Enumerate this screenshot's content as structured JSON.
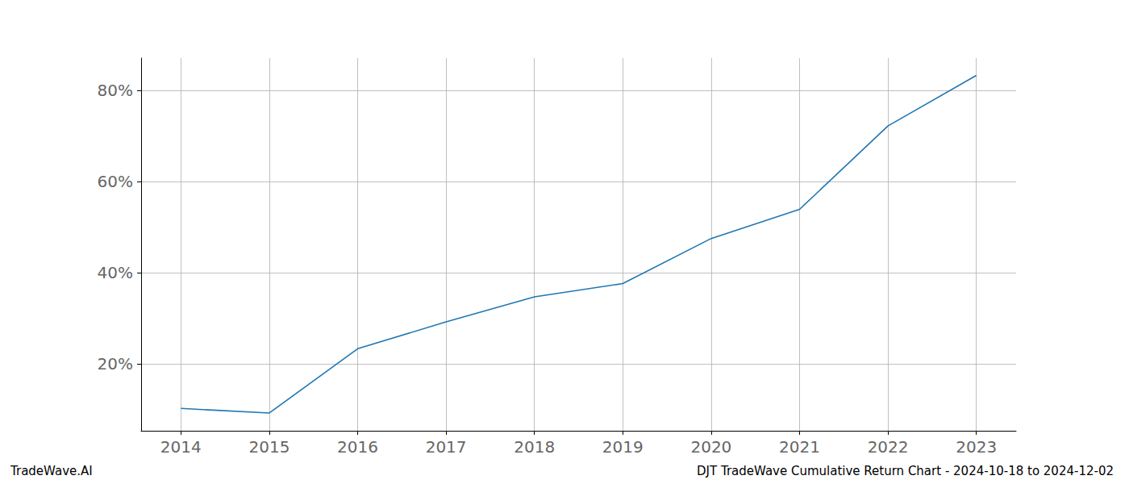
{
  "chart_data": {
    "type": "line",
    "title": "DJT TradeWave Cumulative Return Chart - 2024-10-18 to 2024-12-02",
    "annotations": [
      "TradeWave.AI"
    ],
    "x": [
      2014,
      2015,
      2016,
      2017,
      2018,
      2019,
      2020,
      2021,
      2022,
      2023
    ],
    "values": [
      10.2,
      9.2,
      23.3,
      29.2,
      34.7,
      37.6,
      47.5,
      53.9,
      72.2,
      83.3
    ],
    "color": "#1f77b4",
    "xlim": [
      2013.55,
      2023.45
    ],
    "xticks": [
      2014,
      2015,
      2016,
      2017,
      2018,
      2019,
      2020,
      2021,
      2022,
      2023
    ],
    "ylim": [
      5.3,
      87.1
    ],
    "yticks": [
      {
        "value": 20,
        "label": "20%"
      },
      {
        "value": 40,
        "label": "40%"
      },
      {
        "value": 60,
        "label": "60%"
      },
      {
        "value": 80,
        "label": "80%"
      }
    ],
    "grid": true
  }
}
